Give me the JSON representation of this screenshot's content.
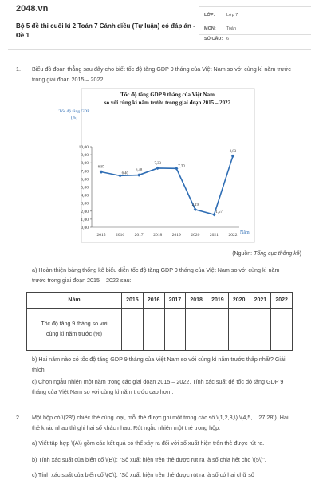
{
  "header": {
    "logo": "2048.vn",
    "title": "Bộ 5 đề thi cuối kì 2 Toán 7 Cánh diều (Tự luận) có đáp án - Đề 1",
    "info": [
      {
        "label": "LỚP:",
        "value": "Lớp 7"
      },
      {
        "label": "MÔN:",
        "value": "Toán"
      },
      {
        "label": "SỐ CÂU:",
        "value": "6"
      }
    ]
  },
  "question1": {
    "number": "1.",
    "text": "Biểu đồ đoạn thẳng sau đây cho biết tốc độ tăng GDP 9 tháng của Việt Nam so với cùng kì năm trước trong giai đoạn 2015 – 2022.",
    "chart_data": {
      "type": "line",
      "title": "Tốc độ tăng GDP 9 tháng của Việt Nam",
      "subtitle": "so với cùng kì năm trước trong giai đoạn 2015 – 2022",
      "y_label": "Tốc độ tăng GDP (%)",
      "x_label": "Năm",
      "categories": [
        "2015",
        "2016",
        "2017",
        "2018",
        "2019",
        "2020",
        "2021",
        "2022"
      ],
      "values": [
        6.87,
        6.4,
        6.48,
        7.33,
        7.3,
        2.19,
        1.57,
        8.83
      ],
      "value_labels": [
        "6,87",
        "6,40",
        "6,48",
        "7,33",
        "7,30",
        "2,19",
        "1,57",
        "8,83"
      ],
      "color": "#2e6db4",
      "ylim": [
        0,
        10
      ],
      "yticks": [
        {
          "value": 0,
          "label": "0,00"
        },
        {
          "value": 1,
          "label": "1,00"
        },
        {
          "value": 2,
          "label": "2,00"
        },
        {
          "value": 3,
          "label": "3,00"
        },
        {
          "value": 4,
          "label": "4,00"
        },
        {
          "value": 5,
          "label": "5,00"
        },
        {
          "value": 6,
          "label": "6,00"
        },
        {
          "value": 7,
          "label": "7,00"
        },
        {
          "value": 8,
          "label": "8,00"
        },
        {
          "value": 9,
          "label": "9,00"
        },
        {
          "value": 10,
          "label": "10,00"
        }
      ],
      "grid": false
    },
    "source": {
      "prefix": "(Nguồn:",
      "name": "Tổng cục thống kê",
      "suffix": ")"
    },
    "part_a": "a) Hoàn thiện bảng thống kê biểu diễn tốc độ tăng GDP 9 tháng của Việt Nam so với cùng kì năm trước trong giai đoạn 2015 – 2022 sau:",
    "table": {
      "header": [
        "Năm",
        "2015",
        "2016",
        "2017",
        "2018",
        "2019",
        "2020",
        "2021",
        "2022"
      ],
      "rows": [
        [
          "Tốc độ tăng 9 tháng so với cùng kì năm trước (%)"
        ]
      ]
    },
    "part_b": "b) Hai năm nào có tốc độ tăng GDP 9 tháng của Việt Nam so với cùng kì năm trước thấp nhất? Giải thích.",
    "part_c": "c) Chọn ngẫu nhiên một năm trong các giai đoạn 2015 – 2022. Tính xác suất để tốc độ tăng GDP 9 tháng của Việt Nam so với cùng kì năm trước cao hơn ."
  },
  "question2": {
    "number": "2.",
    "text": "Một hộp có \\(28\\) chiếc thẻ cùng loại, mỗi thẻ được ghi một trong các số \\(1,2,3,\\) \\(4,5,...,27,28\\). Hai thẻ khác nhau thì ghi hai số khác nhau. Rút ngẫu nhiên một thẻ trong hộp.",
    "part_a": "a) Viết tập hợp \\(A\\) gồm các kết quả có thể xảy ra đối với số xuất hiện trên thẻ được rút ra.",
    "part_b": "b) Tính xác suất của biến cố \\(B\\): \"Số xuất hiện trên thẻ được rút ra là số chia hết cho \\(5\\)\".",
    "part_c": "c) Tính xác suất của biến cố \\(C\\): \"Số xuất hiện trên thẻ được rút ra là số có hai chữ số"
  }
}
